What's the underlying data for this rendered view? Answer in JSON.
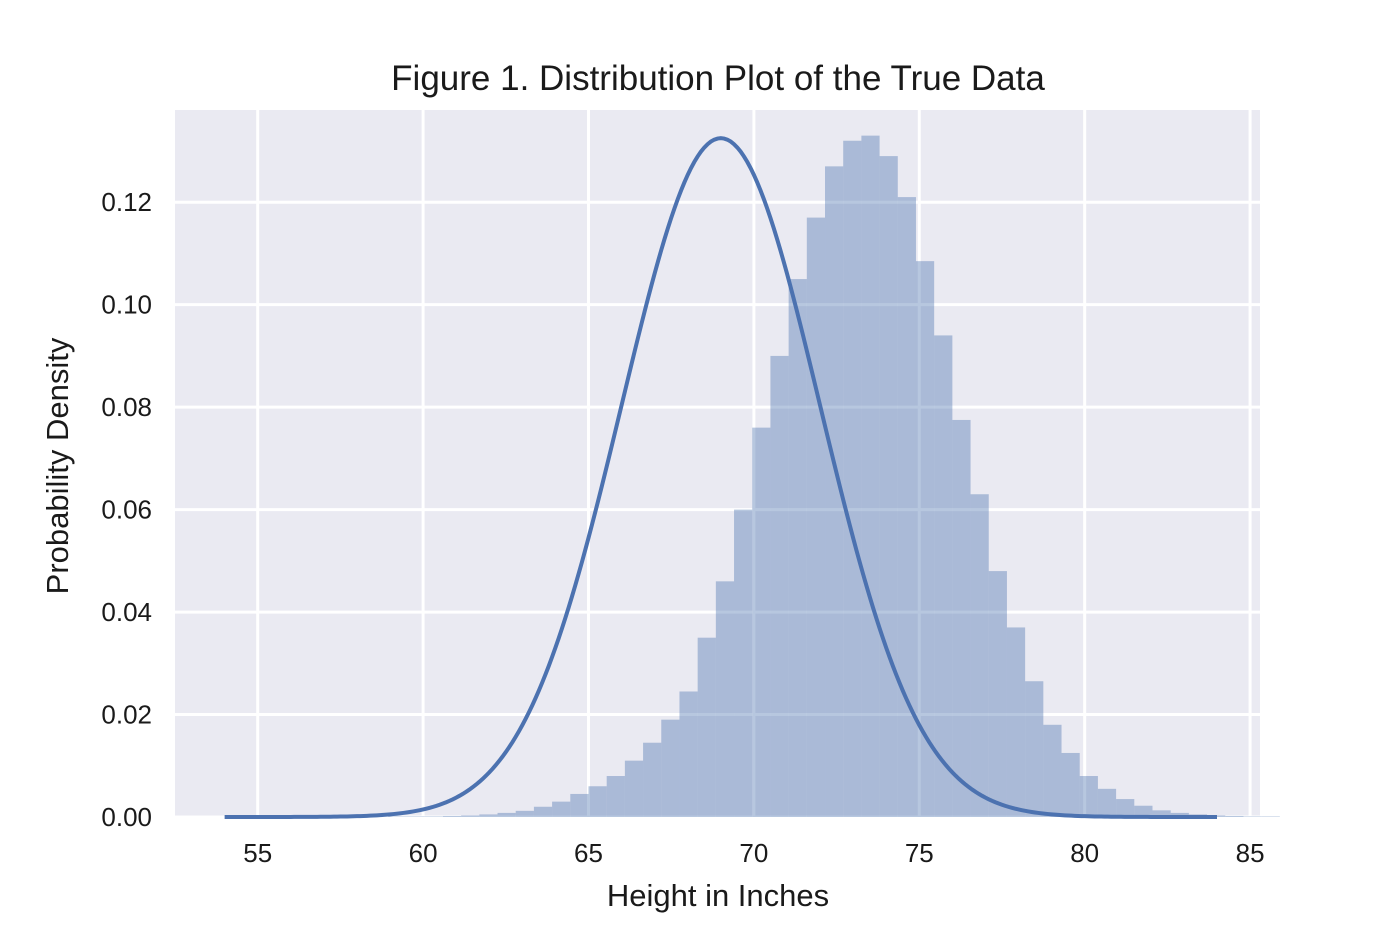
{
  "chart_data": {
    "type": "histogram",
    "title": "Figure 1. Distribution Plot of the True Data",
    "xlabel": "Height in Inches",
    "ylabel": "Probability Density",
    "xlim": [
      52.5,
      85.3
    ],
    "ylim": [
      0,
      0.138
    ],
    "xticks": [
      55,
      60,
      65,
      70,
      75,
      80,
      85
    ],
    "xtick_labels": [
      "55",
      "60",
      "65",
      "70",
      "75",
      "80",
      "85"
    ],
    "yticks": [
      0.0,
      0.02,
      0.04,
      0.06,
      0.08,
      0.1,
      0.12
    ],
    "ytick_labels": [
      "0.00",
      "0.02",
      "0.04",
      "0.06",
      "0.08",
      "0.10",
      "0.12"
    ],
    "grid": true,
    "colors": {
      "background": "#eaeaf2",
      "grid": "#ffffff",
      "bars": "#4c72b0",
      "bars_opacity": 0.4,
      "kde_line": "#4c72b0"
    },
    "histogram": {
      "bin_start": 54.0,
      "bin_width": 0.55,
      "densities": [
        0.0,
        0.0,
        0.0,
        0.0,
        0.0,
        0.0,
        0.0,
        0.0,
        0.0,
        0.0001,
        0.0001,
        0.0001,
        0.0002,
        0.0003,
        0.0005,
        0.0008,
        0.0012,
        0.002,
        0.003,
        0.0045,
        0.006,
        0.008,
        0.011,
        0.0145,
        0.019,
        0.0245,
        0.035,
        0.046,
        0.06,
        0.076,
        0.09,
        0.105,
        0.117,
        0.127,
        0.132,
        0.133,
        0.129,
        0.121,
        0.1085,
        0.094,
        0.0775,
        0.063,
        0.048,
        0.037,
        0.0265,
        0.018,
        0.0125,
        0.008,
        0.0055,
        0.0035,
        0.0022,
        0.0013,
        0.0008,
        0.0005,
        0.0003,
        0.0002,
        0.0001,
        0.0001,
        0.0,
        0.0
      ]
    },
    "kde": {
      "x_range": [
        54.0,
        84.0
      ],
      "mean": 69.0,
      "std": 3.0,
      "peak_density": 0.1325
    }
  }
}
